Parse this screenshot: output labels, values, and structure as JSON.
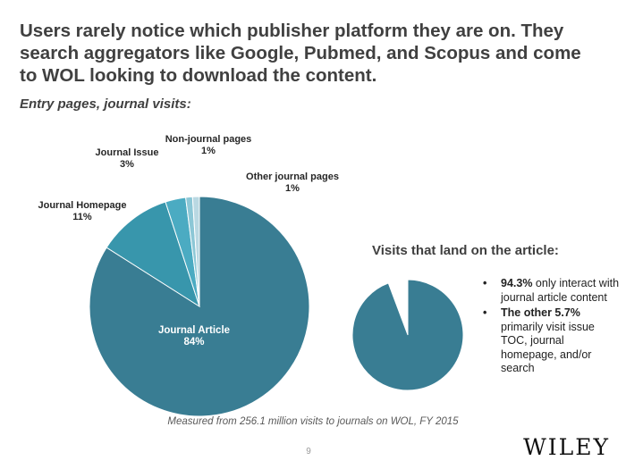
{
  "title": "Users rarely notice which publisher platform they are on.  They search aggregators like Google, Pubmed, and Scopus and come to WOL looking to download the content.",
  "subtitle": "Entry pages, journal visits:",
  "chart_data": [
    {
      "type": "pie",
      "title": "",
      "labels": [
        "Journal Article",
        "Journal Homepage",
        "Journal Issue",
        "Non-journal pages",
        "Other journal  pages"
      ],
      "values": [
        84,
        11,
        3,
        1,
        1
      ],
      "value_labels": [
        "84%",
        "11%",
        "3%",
        "1%",
        "1%"
      ],
      "colors": [
        "#397D93",
        "#3896AC",
        "#4BABC2",
        "#8CC7D6",
        "#B9D8E2"
      ]
    },
    {
      "type": "pie",
      "title": "Visits that land on the article:",
      "values": [
        94.3,
        5.7
      ],
      "shown_slices": [
        0
      ],
      "colors": [
        "#397D93"
      ]
    }
  ],
  "article_panel": {
    "heading": "Visits that land on the article:",
    "bullets": [
      {
        "strong": "94.3%",
        "text": " only interact with journal article content"
      },
      {
        "strong": "The other 5.7%",
        "text": " primarily visit issue TOC, journal homepage, and/or search"
      }
    ]
  },
  "footnote": "Measured from 256.1 million visits to journals on WOL, FY 2015",
  "page_number": "9",
  "logo_text": "WILEY"
}
